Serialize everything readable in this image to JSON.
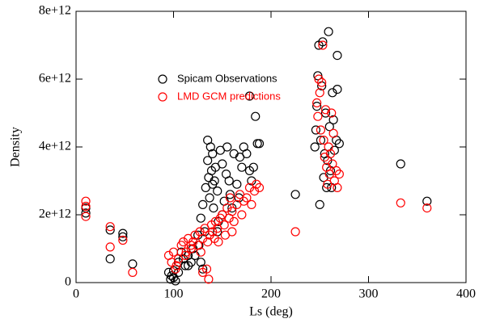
{
  "chart_data": {
    "type": "scatter",
    "x_label": "Ls (deg)",
    "y_label": "Density",
    "xlim": [
      0,
      400
    ],
    "xticks": [
      0,
      100,
      200,
      300,
      400
    ],
    "ylim": [
      0,
      8000000000000.0
    ],
    "yticks": [
      0,
      {
        "value": 2000000000000.0,
        "label": "2e+12"
      },
      {
        "value": 4000000000000.0,
        "label": "4e+12"
      },
      {
        "value": 6000000000000.0,
        "label": "6e+12"
      },
      {
        "value": 8000000000000.0,
        "label": "8e+12"
      }
    ],
    "series": [
      {
        "name": "Spicam Observations",
        "color": "#000000",
        "x": [
          10,
          10,
          35,
          35,
          48,
          48,
          58,
          95,
          97,
          98,
          100,
          102,
          105,
          108,
          110,
          112,
          115,
          118,
          120,
          122,
          125,
          126,
          128,
          130,
          132,
          133,
          135,
          135,
          136,
          137,
          138,
          139,
          140,
          140,
          141,
          142,
          143,
          145,
          146,
          148,
          150,
          152,
          154,
          155,
          157,
          158,
          160,
          162,
          165,
          167,
          168,
          170,
          172,
          175,
          178,
          180,
          182,
          184,
          186,
          188,
          178,
          225,
          245,
          246,
          247,
          248,
          249,
          250,
          251,
          252,
          253,
          254,
          255,
          256,
          257,
          258,
          259,
          260,
          261,
          262,
          263,
          264,
          265,
          267,
          268,
          268,
          270,
          333,
          360,
          115,
          105,
          100,
          130,
          128,
          145,
          150
        ],
        "values": [
          2200000000000.0,
          2050000000000.0,
          700000000000.0,
          1550000000000.0,
          1450000000000.0,
          1350000000000.0,
          550000000000.0,
          300000000000.0,
          100000000000.0,
          200000000000.0,
          350000000000.0,
          50000000000.0,
          600000000000.0,
          900000000000.0,
          700000000000.0,
          500000000000.0,
          800000000000.0,
          600000000000.0,
          1000000000000.0,
          800000000000.0,
          1400000000000.0,
          1100000000000.0,
          1900000000000.0,
          2300000000000.0,
          1500000000000.0,
          2800000000000.0,
          4200000000000.0,
          3600000000000.0,
          3100000000000.0,
          2500000000000.0,
          4000000000000.0,
          3300000000000.0,
          2900000000000.0,
          3800000000000.0,
          2200000000000.0,
          3000000000000.0,
          3400000000000.0,
          2700000000000.0,
          1800000000000.0,
          3900000000000.0,
          3500000000000.0,
          2400000000000.0,
          3200000000000.0,
          4000000000000.0,
          3000000000000.0,
          2600000000000.0,
          2200000000000.0,
          3800000000000.0,
          2900000000000.0,
          2500000000000.0,
          3700000000000.0,
          3400000000000.0,
          4000000000000.0,
          3800000000000.0,
          3300000000000.0,
          3000000000000.0,
          3400000000000.0,
          4900000000000.0,
          4100000000000.0,
          4100000000000.0,
          5500000000000.0,
          2600000000000.0,
          4000000000000.0,
          4500000000000.0,
          5200000000000.0,
          6100000000000.0,
          7000000000000.0,
          2300000000000.0,
          4200000000000.0,
          5800000000000.0,
          7100000000000.0,
          3100000000000.0,
          3800000000000.0,
          5000000000000.0,
          2800000000000.0,
          3600000000000.0,
          7400000000000.0,
          4600000000000.0,
          3300000000000.0,
          2800000000000.0,
          5600000000000.0,
          4800000000000.0,
          3900000000000.0,
          4200000000000.0,
          6700000000000.0,
          5700000000000.0,
          4100000000000.0,
          3500000000000.0,
          2400000000000.0,
          500000000000.0,
          300000000000.0,
          150000000000.0,
          400000000000.0,
          600000000000.0,
          1500000000000.0,
          2000000000000.0
        ]
      },
      {
        "name": "LMD GCM predictions",
        "color": "#ff0000",
        "x": [
          10,
          10,
          10,
          35,
          35,
          48,
          58,
          95,
          98,
          100,
          103,
          105,
          108,
          110,
          113,
          115,
          118,
          120,
          122,
          125,
          127,
          128,
          130,
          132,
          134,
          135,
          136,
          137,
          139,
          140,
          142,
          143,
          145,
          146,
          148,
          150,
          152,
          153,
          155,
          157,
          158,
          160,
          162,
          165,
          168,
          170,
          172,
          175,
          178,
          180,
          183,
          185,
          188,
          225,
          247,
          248,
          249,
          250,
          251,
          252,
          253,
          254,
          255,
          256,
          257,
          258,
          259,
          260,
          261,
          262,
          263,
          264,
          265,
          267,
          268,
          270,
          333,
          360,
          112,
          118,
          102,
          130,
          160
        ],
        "values": [
          2400000000000.0,
          2250000000000.0,
          1950000000000.0,
          1650000000000.0,
          1050000000000.0,
          1250000000000.0,
          300000000000.0,
          800000000000.0,
          600000000000.0,
          900000000000.0,
          500000000000.0,
          700000000000.0,
          1100000000000.0,
          1200000000000.0,
          900000000000.0,
          1300000000000.0,
          1000000000000.0,
          1200000000000.0,
          1400000000000.0,
          1100000000000.0,
          1500000000000.0,
          900000000000.0,
          1300000000000.0,
          1600000000000.0,
          400000000000.0,
          1200000000000.0,
          100000000000.0,
          1400000000000.0,
          1700000000000.0,
          1500000000000.0,
          1300000000000.0,
          1800000000000.0,
          1600000000000.0,
          1200000000000.0,
          1900000000000.0,
          2000000000000.0,
          1700000000000.0,
          1400000000000.0,
          2200000000000.0,
          1900000000000.0,
          2500000000000.0,
          2100000000000.0,
          1800000000000.0,
          2300000000000.0,
          2600000000000.0,
          2000000000000.0,
          2400000000000.0,
          2500000000000.0,
          2800000000000.0,
          2300000000000.0,
          2700000000000.0,
          2900000000000.0,
          2800000000000.0,
          1500000000000.0,
          5300000000000.0,
          4900000000000.0,
          6000000000000.0,
          5600000000000.0,
          4500000000000.0,
          5900000000000.0,
          7000000000000.0,
          4200000000000.0,
          3700000000000.0,
          5100000000000.0,
          3400000000000.0,
          2900000000000.0,
          4000000000000.0,
          3200000000000.0,
          3800000000000.0,
          5000000000000.0,
          3500000000000.0,
          4400000000000.0,
          3000000000000.0,
          3300000000000.0,
          2800000000000.0,
          3200000000000.0,
          2350000000000.0,
          2200000000000.0,
          800000000000.0,
          1100000000000.0,
          400000000000.0,
          300000000000.0,
          1500000000000.0
        ]
      }
    ]
  }
}
